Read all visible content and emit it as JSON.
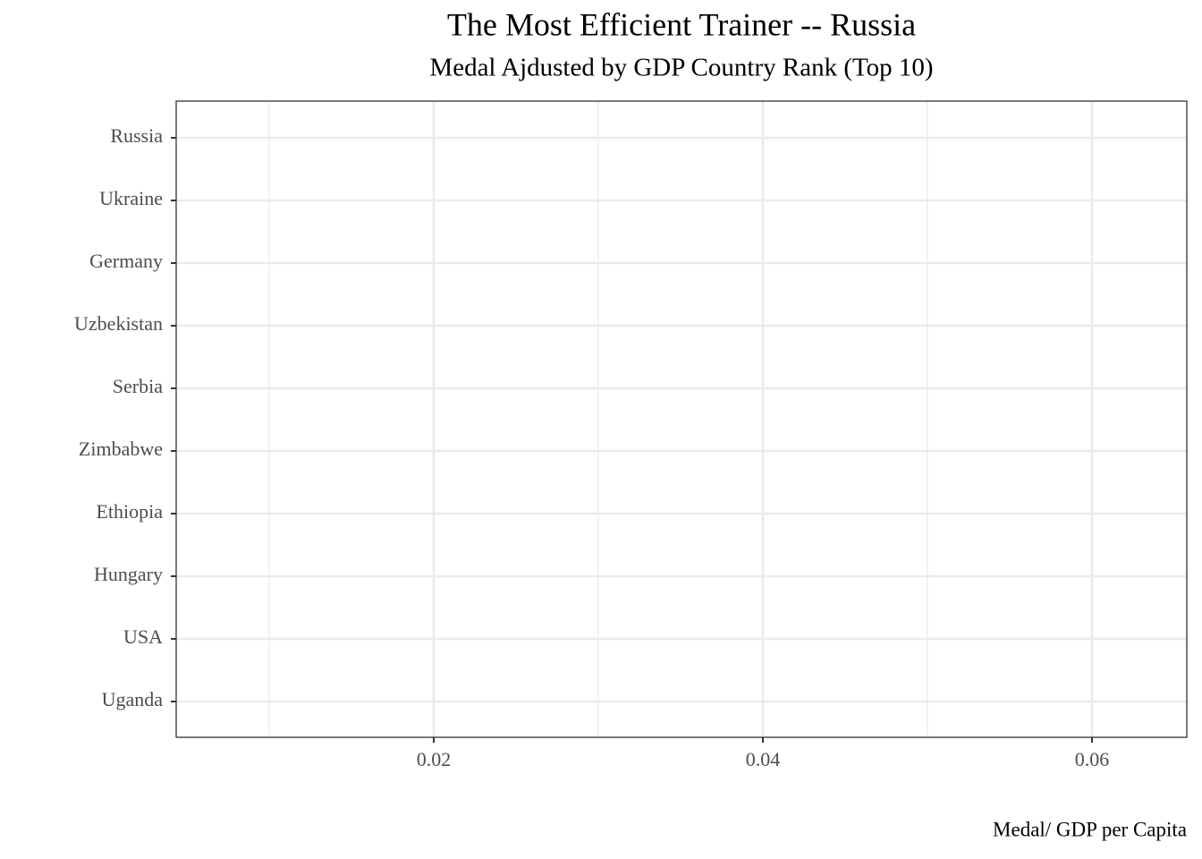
{
  "chart_data": {
    "type": "bar",
    "title": "The Most Efficient Trainer -- Russia",
    "subtitle": "Medal Ajdusted by GDP Country Rank (Top 10)",
    "x_label": "Medal/ GDP per Capita",
    "categories": [
      "Russia",
      "Ukraine",
      "Germany",
      "Uzbekistan",
      "Serbia",
      "Zimbabwe",
      "Ethiopia",
      "Hungary",
      "USA",
      "Uganda"
    ],
    "xlim": [
      0.00435,
      0.06576
    ],
    "xticks": [
      0.02,
      0.04,
      0.06
    ],
    "xminorticks": [
      0.01,
      0.03,
      0.05
    ],
    "grid": true
  }
}
